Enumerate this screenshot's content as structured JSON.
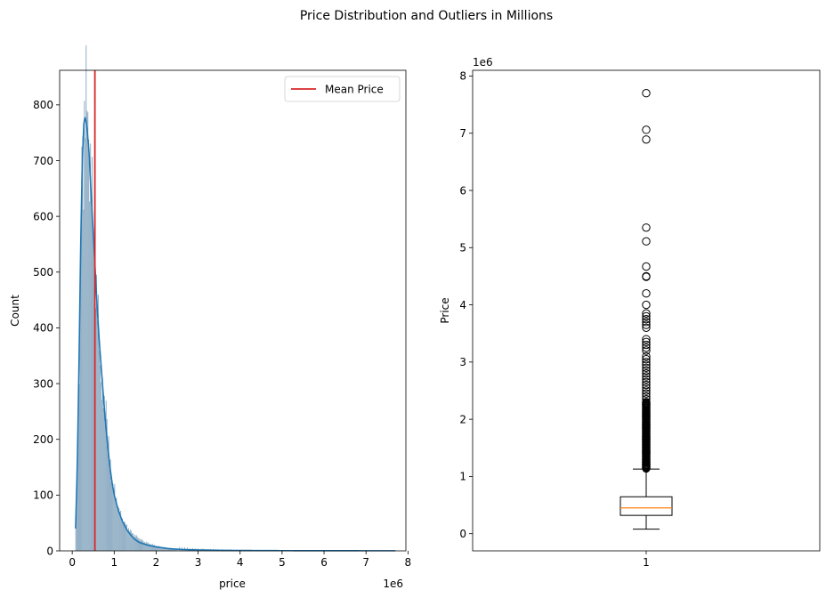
{
  "figure": {
    "title": "Price Distribution and Outliers in Millions"
  },
  "chart_data": [
    {
      "type": "bar",
      "subtype": "histogram_with_kde",
      "xlabel": "price",
      "ylabel": "Count",
      "x_offset_label": "1e6",
      "xlim": [
        -0.3,
        7.95
      ],
      "ylim": [
        0,
        862
      ],
      "x_ticks": [
        0,
        1,
        2,
        3,
        4,
        5,
        6,
        7,
        8
      ],
      "x_tick_labels": [
        "0",
        "1",
        "2",
        "3",
        "4",
        "5",
        "6",
        "7",
        "8"
      ],
      "y_ticks": [
        0,
        100,
        200,
        300,
        400,
        500,
        600,
        700,
        800
      ],
      "y_tick_labels": [
        "0",
        "100",
        "200",
        "300",
        "400",
        "500",
        "600",
        "700",
        "800"
      ],
      "bar_color": "#5b87a8",
      "kde_color": "#1f77b4",
      "mean_color": "#d62728",
      "mean_price": 0.54,
      "legend": {
        "position": "top-right",
        "entries": [
          {
            "label": "Mean Price",
            "color": "#d62728"
          }
        ]
      },
      "grid": false,
      "histogram_peaks": [
        [
          0.08,
          20
        ],
        [
          0.1,
          95
        ],
        [
          0.13,
          180
        ],
        [
          0.16,
          300
        ],
        [
          0.19,
          470
        ],
        [
          0.21,
          600
        ],
        [
          0.24,
          735
        ],
        [
          0.27,
          690
        ],
        [
          0.29,
          780
        ],
        [
          0.31,
          823
        ],
        [
          0.33,
          815
        ],
        [
          0.36,
          770
        ],
        [
          0.38,
          760
        ],
        [
          0.41,
          720
        ],
        [
          0.44,
          690
        ],
        [
          0.46,
          650
        ],
        [
          0.49,
          600
        ],
        [
          0.51,
          560
        ],
        [
          0.54,
          520
        ],
        [
          0.57,
          470
        ],
        [
          0.6,
          430
        ],
        [
          0.63,
          395
        ],
        [
          0.66,
          345
        ],
        [
          0.69,
          305
        ],
        [
          0.72,
          280
        ],
        [
          0.75,
          260
        ],
        [
          0.78,
          240
        ],
        [
          0.81,
          285
        ],
        [
          0.84,
          210
        ],
        [
          0.88,
          170
        ],
        [
          0.92,
          145
        ],
        [
          0.96,
          125
        ],
        [
          1.0,
          110
        ],
        [
          1.05,
          92
        ],
        [
          1.1,
          78
        ],
        [
          1.15,
          66
        ],
        [
          1.2,
          56
        ],
        [
          1.26,
          48
        ],
        [
          1.32,
          42
        ],
        [
          1.38,
          36
        ],
        [
          1.45,
          30
        ],
        [
          1.52,
          26
        ],
        [
          1.6,
          22
        ],
        [
          1.7,
          17
        ],
        [
          1.8,
          14
        ],
        [
          1.92,
          11
        ],
        [
          2.05,
          8
        ],
        [
          2.2,
          6
        ],
        [
          2.4,
          4
        ],
        [
          2.6,
          3
        ],
        [
          2.9,
          2
        ],
        [
          3.3,
          1.5
        ],
        [
          3.8,
          1
        ],
        [
          4.5,
          0.8
        ],
        [
          5.2,
          0.6
        ],
        [
          6.0,
          0.4
        ],
        [
          6.9,
          0.4
        ],
        [
          7.7,
          0.3
        ]
      ],
      "kde": [
        [
          0.08,
          40
        ],
        [
          0.12,
          150
        ],
        [
          0.16,
          330
        ],
        [
          0.2,
          540
        ],
        [
          0.24,
          700
        ],
        [
          0.28,
          770
        ],
        [
          0.31,
          778
        ],
        [
          0.35,
          760
        ],
        [
          0.4,
          715
        ],
        [
          0.45,
          640
        ],
        [
          0.5,
          570
        ],
        [
          0.55,
          500
        ],
        [
          0.6,
          430
        ],
        [
          0.65,
          370
        ],
        [
          0.7,
          320
        ],
        [
          0.75,
          270
        ],
        [
          0.8,
          225
        ],
        [
          0.85,
          185
        ],
        [
          0.9,
          150
        ],
        [
          0.95,
          122
        ],
        [
          1.0,
          100
        ],
        [
          1.1,
          72
        ],
        [
          1.2,
          52
        ],
        [
          1.3,
          38
        ],
        [
          1.4,
          28
        ],
        [
          1.5,
          20
        ],
        [
          1.6,
          15
        ],
        [
          1.8,
          10
        ],
        [
          2.0,
          7
        ],
        [
          2.3,
          4
        ],
        [
          2.6,
          2.5
        ],
        [
          3.0,
          1.6
        ],
        [
          3.5,
          1
        ],
        [
          4.0,
          0.7
        ],
        [
          5.0,
          0.4
        ],
        [
          6.0,
          0.3
        ],
        [
          7.0,
          0.2
        ],
        [
          7.7,
          0.2
        ]
      ]
    },
    {
      "type": "boxplot",
      "xlabel": "",
      "ylabel": "Price",
      "y_offset_label": "1e6",
      "ylim": [
        -0.3,
        8.1
      ],
      "x_tick_labels": [
        "1"
      ],
      "y_ticks": [
        0,
        1,
        2,
        3,
        4,
        5,
        6,
        7,
        8
      ],
      "y_tick_labels": [
        "0",
        "1",
        "2",
        "3",
        "4",
        "5",
        "6",
        "7",
        "8"
      ],
      "median_color": "#ff7f0e",
      "box": {
        "whisker_low": 0.08,
        "q1": 0.32,
        "median": 0.45,
        "q3": 0.645,
        "whisker_high": 1.13
      },
      "outliers": [
        7.7,
        7.06,
        6.89,
        5.35,
        5.11,
        4.67,
        4.5,
        4.49,
        4.2,
        4.0,
        3.85,
        3.8,
        3.75,
        3.7,
        3.65,
        3.6,
        3.4,
        3.35,
        3.3,
        3.25,
        3.2,
        3.1,
        3.05,
        3.0,
        2.95,
        2.9,
        2.85,
        2.8,
        2.75,
        2.7,
        2.65,
        2.6,
        2.55,
        2.5,
        2.45,
        2.4,
        2.35,
        2.3,
        2.25,
        2.2,
        2.15,
        2.1,
        2.05,
        2.0,
        1.95,
        1.9,
        1.85,
        1.8,
        1.75,
        1.7,
        1.65,
        1.6,
        1.55,
        1.5,
        1.45,
        1.4,
        1.35,
        1.3,
        1.25,
        1.2,
        1.17,
        1.15
      ]
    }
  ]
}
